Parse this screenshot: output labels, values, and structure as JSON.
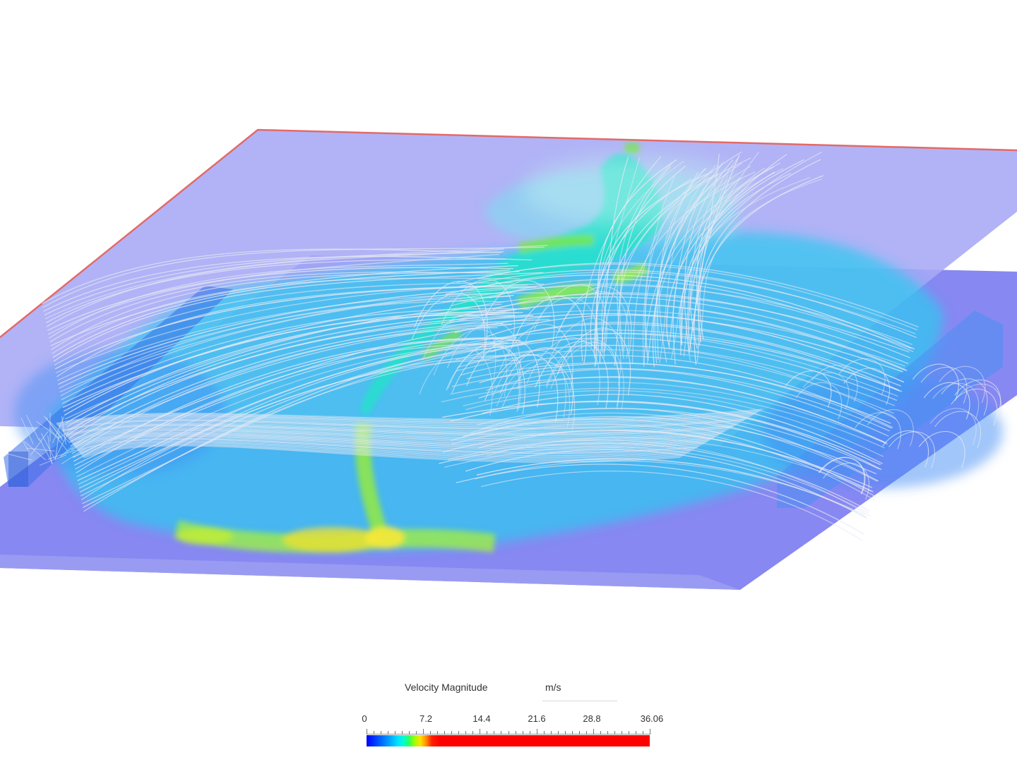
{
  "legend": {
    "title": "Velocity Magnitude",
    "unit": "m/s",
    "ticks": [
      "0",
      "7.2",
      "14.4",
      "21.6",
      "28.8",
      "36.06"
    ],
    "tick_values": [
      0,
      7.2,
      14.4,
      21.6,
      28.8,
      36.06
    ],
    "min": 0,
    "max": 36.06,
    "colormap": [
      "#0000ff",
      "#00a0ff",
      "#00ffd0",
      "#a0ff00",
      "#ffe000",
      "#ff9000",
      "#ff0000"
    ]
  },
  "colors": {
    "slice_plane": "#a6a8f5",
    "slice_outline": "#e26a6a",
    "ground": "#7272ee",
    "streamline": "#e6e9f4"
  }
}
